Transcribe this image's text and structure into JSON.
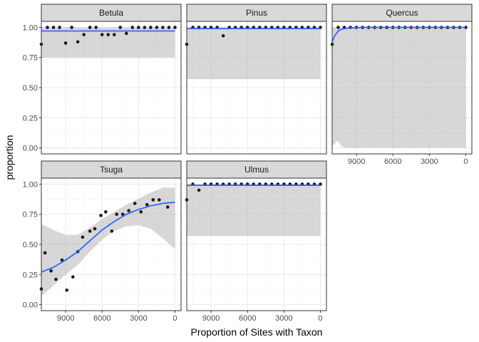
{
  "colors": {
    "panel_border": "#333333",
    "strip_fill": "#d9d9d9",
    "grid_major": "#ebebeb",
    "grid_minor": "#f5f5f5",
    "ribbon": "#bdbdbd",
    "line": "#3366ff",
    "point": "#1a1a1a"
  },
  "chart_data": {
    "type": "scatter",
    "xlabel": "Proportion of Sites with Taxon",
    "ylabel": "proportion",
    "x_reversed": true,
    "xlim": [
      11000,
      -500
    ],
    "ylim": [
      -0.05,
      1.05
    ],
    "x_ticks": [
      9000,
      6000,
      3000,
      0
    ],
    "x_tick_labels": [
      "9000",
      "6000",
      "3000",
      "0"
    ],
    "y_ticks": [
      0,
      0.25,
      0.5,
      0.75,
      1
    ],
    "y_tick_labels": [
      "0.00",
      "0.25",
      "0.50",
      "0.75",
      "1.00"
    ],
    "grid": true,
    "smooth": "fitted line with confidence ribbon",
    "panels": [
      {
        "name": "Betula",
        "points": [
          [
            11000,
            0.86
          ],
          [
            10500,
            1.0
          ],
          [
            10000,
            1.0
          ],
          [
            9500,
            1.0
          ],
          [
            9000,
            0.87
          ],
          [
            8500,
            1.0
          ],
          [
            8000,
            0.88
          ],
          [
            7500,
            0.94
          ],
          [
            7000,
            1.0
          ],
          [
            6500,
            1.0
          ],
          [
            6000,
            0.94
          ],
          [
            5500,
            0.94
          ],
          [
            5000,
            0.94
          ],
          [
            4500,
            1.0
          ],
          [
            4000,
            0.95
          ],
          [
            3500,
            1.0
          ],
          [
            3000,
            1.0
          ],
          [
            2500,
            1.0
          ],
          [
            2000,
            1.0
          ],
          [
            1500,
            1.0
          ],
          [
            1000,
            1.0
          ],
          [
            500,
            1.0
          ],
          [
            0,
            1.0
          ]
        ],
        "fit": [
          [
            11000,
            0.97
          ],
          [
            0,
            0.97
          ]
        ],
        "ribbon": [
          [
            11000,
            0.75,
            1.0
          ],
          [
            0,
            0.75,
            1.0
          ]
        ]
      },
      {
        "name": "Pinus",
        "points": [
          [
            11000,
            0.86
          ],
          [
            10500,
            1.0
          ],
          [
            10000,
            1.0
          ],
          [
            9500,
            1.0
          ],
          [
            9000,
            1.0
          ],
          [
            8500,
            1.0
          ],
          [
            8000,
            0.93
          ],
          [
            7500,
            1.0
          ],
          [
            7000,
            1.0
          ],
          [
            6500,
            1.0
          ],
          [
            6000,
            1.0
          ],
          [
            5500,
            1.0
          ],
          [
            5000,
            1.0
          ],
          [
            4500,
            1.0
          ],
          [
            4000,
            1.0
          ],
          [
            3500,
            1.0
          ],
          [
            3000,
            1.0
          ],
          [
            2500,
            1.0
          ],
          [
            2000,
            1.0
          ],
          [
            1500,
            1.0
          ],
          [
            1000,
            1.0
          ],
          [
            500,
            1.0
          ],
          [
            0,
            1.0
          ]
        ],
        "fit": [
          [
            11000,
            0.99
          ],
          [
            0,
            0.99
          ]
        ],
        "ribbon": [
          [
            11000,
            0.57,
            1.0
          ],
          [
            0,
            0.57,
            1.0
          ]
        ]
      },
      {
        "name": "Quercus",
        "points": [
          [
            11000,
            0.86
          ],
          [
            10500,
            1.0
          ],
          [
            10000,
            1.0
          ],
          [
            9500,
            1.0
          ],
          [
            9000,
            1.0
          ],
          [
            8500,
            1.0
          ],
          [
            8000,
            1.0
          ],
          [
            7500,
            1.0
          ],
          [
            7000,
            1.0
          ],
          [
            6500,
            1.0
          ],
          [
            6000,
            1.0
          ],
          [
            5500,
            1.0
          ],
          [
            5000,
            1.0
          ],
          [
            4500,
            1.0
          ],
          [
            4000,
            1.0
          ],
          [
            3500,
            1.0
          ],
          [
            3000,
            1.0
          ],
          [
            2500,
            1.0
          ],
          [
            2000,
            1.0
          ],
          [
            1500,
            1.0
          ],
          [
            1000,
            1.0
          ],
          [
            500,
            1.0
          ],
          [
            0,
            1.0
          ]
        ],
        "fit": [
          [
            11000,
            0.88
          ],
          [
            10800,
            0.93
          ],
          [
            10500,
            0.97
          ],
          [
            10200,
            0.985
          ],
          [
            9800,
            0.993
          ],
          [
            9000,
            0.998
          ],
          [
            8000,
            1.0
          ],
          [
            0,
            1.0
          ]
        ],
        "ribbon": [
          [
            11000,
            0.02,
            1.0
          ],
          [
            10800,
            0.03,
            1.0
          ],
          [
            10600,
            0.06,
            1.0
          ],
          [
            10400,
            0.04,
            1.0
          ],
          [
            10200,
            0.01,
            1.0
          ],
          [
            9800,
            0.0,
            1.0
          ],
          [
            9000,
            0.0,
            1.0
          ],
          [
            0,
            0.0,
            1.0
          ]
        ]
      },
      {
        "name": "Tsuga",
        "points": [
          [
            11000,
            0.13
          ],
          [
            10700,
            0.43
          ],
          [
            10200,
            0.28
          ],
          [
            9800,
            0.21
          ],
          [
            9300,
            0.37
          ],
          [
            8900,
            0.12
          ],
          [
            8400,
            0.23
          ],
          [
            8000,
            0.44
          ],
          [
            7600,
            0.56
          ],
          [
            7000,
            0.61
          ],
          [
            6600,
            0.63
          ],
          [
            6100,
            0.74
          ],
          [
            5700,
            0.77
          ],
          [
            5200,
            0.61
          ],
          [
            4800,
            0.75
          ],
          [
            4300,
            0.75
          ],
          [
            3800,
            0.78
          ],
          [
            3300,
            0.84
          ],
          [
            2800,
            0.77
          ],
          [
            2300,
            0.83
          ],
          [
            1800,
            0.87
          ],
          [
            1300,
            0.87
          ],
          [
            600,
            0.81
          ]
        ],
        "fit": [
          [
            11000,
            0.27
          ],
          [
            10000,
            0.31
          ],
          [
            9000,
            0.37
          ],
          [
            8000,
            0.44
          ],
          [
            7000,
            0.53
          ],
          [
            6000,
            0.62
          ],
          [
            5000,
            0.69
          ],
          [
            4000,
            0.75
          ],
          [
            3000,
            0.79
          ],
          [
            2000,
            0.82
          ],
          [
            1000,
            0.84
          ],
          [
            0,
            0.85
          ]
        ],
        "ribbon": [
          [
            11000,
            0.07,
            0.67
          ],
          [
            10000,
            0.16,
            0.62
          ],
          [
            9000,
            0.25,
            0.58
          ],
          [
            8000,
            0.33,
            0.58
          ],
          [
            7000,
            0.44,
            0.64
          ],
          [
            6000,
            0.54,
            0.71
          ],
          [
            5000,
            0.61,
            0.77
          ],
          [
            4000,
            0.65,
            0.83
          ],
          [
            3000,
            0.66,
            0.88
          ],
          [
            2000,
            0.63,
            0.93
          ],
          [
            1000,
            0.55,
            0.97
          ],
          [
            0,
            0.46,
            0.97
          ]
        ]
      },
      {
        "name": "Ulmus",
        "points": [
          [
            11000,
            0.87
          ],
          [
            10500,
            1.0
          ],
          [
            10000,
            0.95
          ],
          [
            9500,
            1.0
          ],
          [
            9000,
            1.0
          ],
          [
            8500,
            1.0
          ],
          [
            8000,
            1.0
          ],
          [
            7500,
            1.0
          ],
          [
            7000,
            1.0
          ],
          [
            6500,
            1.0
          ],
          [
            6000,
            1.0
          ],
          [
            5500,
            1.0
          ],
          [
            5000,
            1.0
          ],
          [
            4500,
            1.0
          ],
          [
            4000,
            1.0
          ],
          [
            3500,
            1.0
          ],
          [
            3000,
            1.0
          ],
          [
            2500,
            1.0
          ],
          [
            2000,
            1.0
          ],
          [
            1500,
            1.0
          ],
          [
            1000,
            1.0
          ],
          [
            500,
            1.0
          ],
          [
            0,
            1.0
          ]
        ],
        "fit": [
          [
            11000,
            0.99
          ],
          [
            0,
            0.99
          ]
        ],
        "ribbon": [
          [
            11000,
            0.57,
            1.0
          ],
          [
            0,
            0.57,
            1.0
          ]
        ]
      }
    ]
  }
}
